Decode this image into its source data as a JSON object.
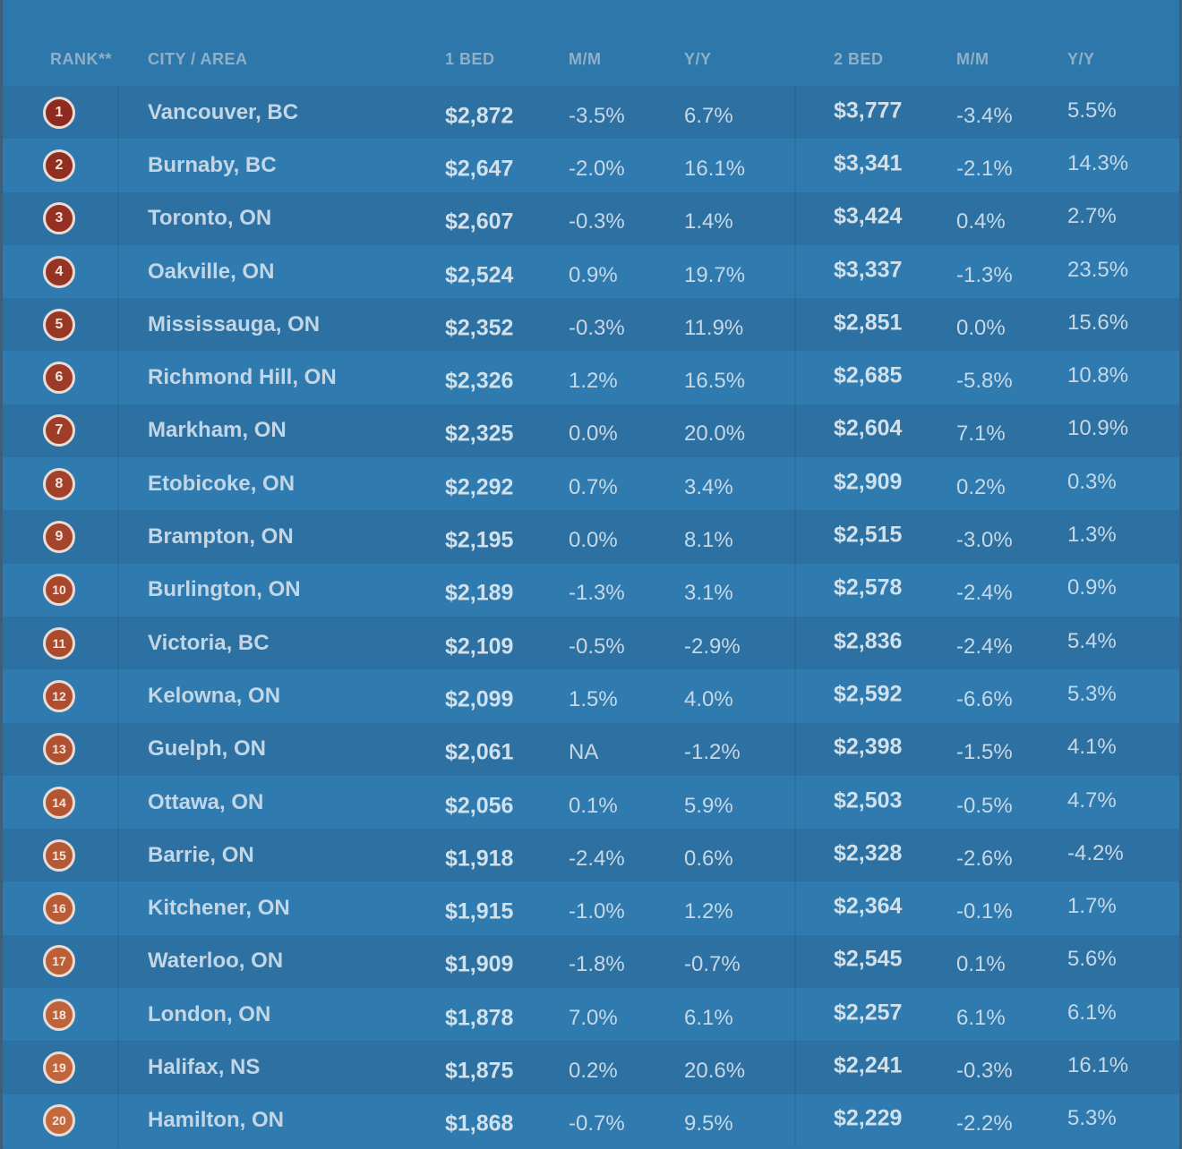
{
  "header": {
    "rank": "RANK**",
    "city": "CITY / AREA",
    "one_bed": "1 BED",
    "mm1": "M/M",
    "yy1": "Y/Y",
    "two_bed": "2 BED",
    "mm2": "M/M",
    "yy2": "Y/Y"
  },
  "colors": {
    "rank_dark": "#8e2a1f",
    "rank_light": "#c3693c"
  },
  "rows": [
    {
      "rank": "1",
      "city": "Vancouver, BC",
      "one_bed": "$2,872",
      "mm1": "-3.5%",
      "yy1": "6.7%",
      "two_bed": "$3,777",
      "mm2": "-3.4%",
      "yy2": "5.5%"
    },
    {
      "rank": "2",
      "city": "Burnaby, BC",
      "one_bed": "$2,647",
      "mm1": "-2.0%",
      "yy1": "16.1%",
      "two_bed": "$3,341",
      "mm2": "-2.1%",
      "yy2": "14.3%"
    },
    {
      "rank": "3",
      "city": "Toronto, ON",
      "one_bed": "$2,607",
      "mm1": "-0.3%",
      "yy1": "1.4%",
      "two_bed": "$3,424",
      "mm2": "0.4%",
      "yy2": "2.7%"
    },
    {
      "rank": "4",
      "city": "Oakville, ON",
      "one_bed": "$2,524",
      "mm1": "0.9%",
      "yy1": "19.7%",
      "two_bed": "$3,337",
      "mm2": "-1.3%",
      "yy2": "23.5%"
    },
    {
      "rank": "5",
      "city": "Mississauga, ON",
      "one_bed": "$2,352",
      "mm1": "-0.3%",
      "yy1": "11.9%",
      "two_bed": "$2,851",
      "mm2": "0.0%",
      "yy2": "15.6%"
    },
    {
      "rank": "6",
      "city": "Richmond Hill, ON",
      "one_bed": "$2,326",
      "mm1": "1.2%",
      "yy1": "16.5%",
      "two_bed": "$2,685",
      "mm2": "-5.8%",
      "yy2": "10.8%"
    },
    {
      "rank": "7",
      "city": "Markham, ON",
      "one_bed": "$2,325",
      "mm1": "0.0%",
      "yy1": "20.0%",
      "two_bed": "$2,604",
      "mm2": "7.1%",
      "yy2": "10.9%"
    },
    {
      "rank": "8",
      "city": "Etobicoke, ON",
      "one_bed": "$2,292",
      "mm1": "0.7%",
      "yy1": "3.4%",
      "two_bed": "$2,909",
      "mm2": "0.2%",
      "yy2": "0.3%"
    },
    {
      "rank": "9",
      "city": "Brampton, ON",
      "one_bed": "$2,195",
      "mm1": "0.0%",
      "yy1": "8.1%",
      "two_bed": "$2,515",
      "mm2": "-3.0%",
      "yy2": "1.3%"
    },
    {
      "rank": "10",
      "city": "Burlington, ON",
      "one_bed": "$2,189",
      "mm1": "-1.3%",
      "yy1": "3.1%",
      "two_bed": "$2,578",
      "mm2": "-2.4%",
      "yy2": "0.9%"
    },
    {
      "rank": "11",
      "city": "Victoria, BC",
      "one_bed": "$2,109",
      "mm1": "-0.5%",
      "yy1": "-2.9%",
      "two_bed": "$2,836",
      "mm2": "-2.4%",
      "yy2": "5.4%"
    },
    {
      "rank": "12",
      "city": "Kelowna, ON",
      "one_bed": "$2,099",
      "mm1": "1.5%",
      "yy1": "4.0%",
      "two_bed": "$2,592",
      "mm2": "-6.6%",
      "yy2": "5.3%"
    },
    {
      "rank": "13",
      "city": "Guelph, ON",
      "one_bed": "$2,061",
      "mm1": "NA",
      "yy1": "-1.2%",
      "two_bed": "$2,398",
      "mm2": "-1.5%",
      "yy2": "4.1%"
    },
    {
      "rank": "14",
      "city": "Ottawa, ON",
      "one_bed": "$2,056",
      "mm1": "0.1%",
      "yy1": "5.9%",
      "two_bed": "$2,503",
      "mm2": "-0.5%",
      "yy2": "4.7%"
    },
    {
      "rank": "15",
      "city": "Barrie, ON",
      "one_bed": "$1,918",
      "mm1": "-2.4%",
      "yy1": "0.6%",
      "two_bed": "$2,328",
      "mm2": "-2.6%",
      "yy2": "-4.2%"
    },
    {
      "rank": "16",
      "city": "Kitchener, ON",
      "one_bed": "$1,915",
      "mm1": "-1.0%",
      "yy1": "1.2%",
      "two_bed": "$2,364",
      "mm2": "-0.1%",
      "yy2": "1.7%"
    },
    {
      "rank": "17",
      "city": "Waterloo, ON",
      "one_bed": "$1,909",
      "mm1": "-1.8%",
      "yy1": "-0.7%",
      "two_bed": "$2,545",
      "mm2": "0.1%",
      "yy2": "5.6%"
    },
    {
      "rank": "18",
      "city": "London, ON",
      "one_bed": "$1,878",
      "mm1": "7.0%",
      "yy1": "6.1%",
      "two_bed": "$2,257",
      "mm2": "6.1%",
      "yy2": "6.1%"
    },
    {
      "rank": "19",
      "city": "Halifax, NS",
      "one_bed": "$1,875",
      "mm1": "0.2%",
      "yy1": "20.6%",
      "two_bed": "$2,241",
      "mm2": "-0.3%",
      "yy2": "16.1%"
    },
    {
      "rank": "20",
      "city": "Hamilton, ON",
      "one_bed": "$1,868",
      "mm1": "-0.7%",
      "yy1": "9.5%",
      "two_bed": "$2,229",
      "mm2": "-2.2%",
      "yy2": "5.3%"
    }
  ]
}
